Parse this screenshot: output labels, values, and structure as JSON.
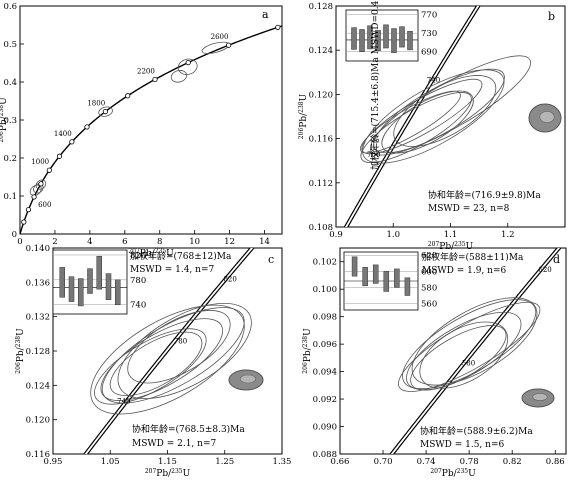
{
  "panels": [
    {
      "id": "a",
      "letter": "a",
      "xlabel": [
        "207",
        "Pb/",
        "235",
        "U"
      ],
      "ylabel": [
        "206",
        "Pb/",
        "238",
        "U"
      ],
      "chart_data": {
        "type": "scatter",
        "xlim": [
          0,
          15
        ],
        "ylim": [
          0,
          0.6
        ],
        "xticks": [
          0,
          2,
          4,
          6,
          8,
          10,
          12,
          14
        ],
        "xtick_labels": [
          "0",
          "2",
          "4",
          "6",
          "8",
          "10",
          "12",
          "14"
        ],
        "yticks": [
          0,
          0.1,
          0.2,
          0.3,
          0.4,
          0.5,
          0.6
        ],
        "ytick_labels": [
          "0",
          "0.1",
          "0.2",
          "0.3",
          "0.4",
          "0.5",
          "0.6"
        ],
        "concordia_age_range_ma": [
          0,
          2900
        ],
        "age_markers_ma": [
          200,
          400,
          600,
          800,
          1000,
          1200,
          1400,
          1600,
          1800,
          2000,
          2200,
          2400,
          2600,
          2800
        ],
        "age_labels": [
          {
            "age": 600,
            "text": "600"
          },
          {
            "age": 1000,
            "text": "1000"
          },
          {
            "age": 1400,
            "text": "1400"
          },
          {
            "age": 1800,
            "text": "1800"
          },
          {
            "age": 2200,
            "text": "2200"
          },
          {
            "age": 2600,
            "text": "2600"
          }
        ],
        "ellipses": [
          {
            "x": 0.9,
            "y": 0.115,
            "rx": 0.35,
            "ry": 0.012,
            "angle": 40
          },
          {
            "x": 1.05,
            "y": 0.12,
            "rx": 0.3,
            "ry": 0.011,
            "angle": 40
          },
          {
            "x": 1.2,
            "y": 0.13,
            "rx": 0.3,
            "ry": 0.011,
            "angle": 40
          },
          {
            "x": 4.9,
            "y": 0.322,
            "rx": 0.4,
            "ry": 0.012,
            "angle": 15
          },
          {
            "x": 9.1,
            "y": 0.415,
            "rx": 0.45,
            "ry": 0.015,
            "angle": 15
          },
          {
            "x": 9.6,
            "y": 0.44,
            "rx": 0.55,
            "ry": 0.02,
            "angle": 15
          },
          {
            "x": 11.2,
            "y": 0.49,
            "rx": 0.8,
            "ry": 0.012,
            "angle": 15
          }
        ]
      }
    },
    {
      "id": "b",
      "letter": "b",
      "xlabel": [
        "207",
        "Pb/",
        "235",
        "U"
      ],
      "ylabel": [
        "206",
        "Pb/",
        "238",
        "U"
      ],
      "annot_vertical": "加权年龄=(715.4±6.8)Ma MSWD=0.49, n=8",
      "annot_lines": [
        "协和年龄=(716.9±9.8)Ma",
        "MSWD = 23, n=8"
      ],
      "chart_data": {
        "type": "scatter",
        "xlim": [
          0.9,
          1.3
        ],
        "ylim": [
          0.108,
          0.128
        ],
        "xticks": [
          0.9,
          1.0,
          1.1,
          1.2
        ],
        "xtick_labels": [
          "0.9",
          "1.0",
          "1.1",
          "1.2"
        ],
        "yticks": [
          0.108,
          0.112,
          0.116,
          0.12,
          0.124,
          0.128
        ],
        "ytick_labels": [
          "0.108",
          "0.112",
          "0.116",
          "0.120",
          "0.124",
          "0.128"
        ],
        "concordia_age_range_ma": [
          640,
          800
        ],
        "age_labels": [
          {
            "age": 700,
            "text": "700"
          },
          {
            "age": 740,
            "text": "740"
          }
        ],
        "inset": {
          "yticks": [
            690,
            730,
            770
          ],
          "ytick_labels": [
            "690",
            "730",
            "770"
          ],
          "ylim": [
            670,
            780
          ],
          "weighted_mean": 715.4,
          "bars": [
            [
              695,
              742
            ],
            [
              690,
              738
            ],
            [
              696,
              746
            ],
            [
              692,
              736
            ],
            [
              698,
              748
            ],
            [
              688,
              740
            ],
            [
              700,
              744
            ],
            [
              694,
              734
            ]
          ]
        },
        "ellipses": [
          {
            "x": 1.03,
            "y": 0.1175,
            "rx": 0.1,
            "ry": 0.0012,
            "angle": 30
          },
          {
            "x": 1.05,
            "y": 0.118,
            "rx": 0.12,
            "ry": 0.0015,
            "angle": 30
          },
          {
            "x": 1.08,
            "y": 0.1185,
            "rx": 0.13,
            "ry": 0.002,
            "angle": 30
          },
          {
            "x": 1.07,
            "y": 0.118,
            "rx": 0.14,
            "ry": 0.0025,
            "angle": 30
          },
          {
            "x": 1.1,
            "y": 0.119,
            "rx": 0.16,
            "ry": 0.002,
            "angle": 30
          },
          {
            "x": 1.06,
            "y": 0.1175,
            "rx": 0.09,
            "ry": 0.0018,
            "angle": 30
          },
          {
            "x": 1.04,
            "y": 0.117,
            "rx": 0.11,
            "ry": 0.0016,
            "angle": 30
          },
          {
            "x": 1.09,
            "y": 0.1185,
            "rx": 0.1,
            "ry": 0.0022,
            "angle": 30
          }
        ]
      }
    },
    {
      "id": "c",
      "letter": "c",
      "xlabel": [
        "207",
        "Pb/",
        "235",
        "U"
      ],
      "ylabel": [
        "206",
        "Pb/",
        "238",
        "U"
      ],
      "annot_lines_top": [
        "加权年龄=(768±12)Ma",
        "MSWD = 1.4, n=7"
      ],
      "annot_lines": [
        "协和年龄=(768.5±8.3)Ma",
        "MSWD = 2.1, n=7"
      ],
      "chart_data": {
        "type": "scatter",
        "xlim": [
          0.95,
          1.35
        ],
        "ylim": [
          0.116,
          0.14
        ],
        "xticks": [
          0.95,
          1.05,
          1.15,
          1.25,
          1.35
        ],
        "xtick_labels": [
          "0.95",
          "1.05",
          "1.15",
          "1.25",
          "1.35"
        ],
        "yticks": [
          0.116,
          0.12,
          0.124,
          0.128,
          0.132,
          0.136,
          0.14
        ],
        "ytick_labels": [
          "0.116",
          "0.120",
          "0.124",
          "0.128",
          "0.132",
          "0.136",
          "0.140"
        ],
        "concordia_age_range_ma": [
          700,
          880
        ],
        "age_labels": [
          {
            "age": 740,
            "text": "740"
          },
          {
            "age": 780,
            "text": "780"
          },
          {
            "age": 820,
            "text": "820"
          }
        ],
        "inset": {
          "yticks": [
            740,
            780,
            820
          ],
          "ytick_labels": [
            "740",
            "780",
            "820"
          ],
          "ylim": [
            725,
            828
          ],
          "weighted_mean": 768,
          "bars": [
            [
              752,
              800
            ],
            [
              745,
              785
            ],
            [
              738,
              782
            ],
            [
              758,
              798
            ],
            [
              765,
              818
            ],
            [
              748,
              790
            ],
            [
              740,
              780
            ]
          ]
        },
        "ellipses": [
          {
            "x": 1.14,
            "y": 0.127,
            "rx": 0.12,
            "ry": 0.003,
            "angle": 30
          },
          {
            "x": 1.16,
            "y": 0.1275,
            "rx": 0.14,
            "ry": 0.0035,
            "angle": 30
          },
          {
            "x": 1.13,
            "y": 0.1265,
            "rx": 0.09,
            "ry": 0.0025,
            "angle": 30
          },
          {
            "x": 1.18,
            "y": 0.128,
            "rx": 0.13,
            "ry": 0.004,
            "angle": 30
          },
          {
            "x": 1.12,
            "y": 0.1262,
            "rx": 0.11,
            "ry": 0.0028,
            "angle": 30
          },
          {
            "x": 1.15,
            "y": 0.127,
            "rx": 0.15,
            "ry": 0.0045,
            "angle": 30
          },
          {
            "x": 1.17,
            "y": 0.1285,
            "rx": 0.1,
            "ry": 0.003,
            "angle": 30
          }
        ]
      }
    },
    {
      "id": "d",
      "letter": "d",
      "xlabel": [
        "207",
        "Pb/",
        "235",
        "U"
      ],
      "ylabel": [
        "206",
        "Pb/",
        "238",
        "U"
      ],
      "annot_lines_top": [
        "加权年龄=(588±11)Ma",
        "MSWD = 1.9, n=6"
      ],
      "annot_lines": [
        "协和年龄=(588.9±6.2)Ma",
        "MSWD = 1.5, n=6"
      ],
      "chart_data": {
        "type": "scatter",
        "xlim": [
          0.66,
          0.87
        ],
        "ylim": [
          0.088,
          0.103
        ],
        "xticks": [
          0.66,
          0.7,
          0.74,
          0.78,
          0.82,
          0.86
        ],
        "xtick_labels": [
          "0.66",
          "0.70",
          "0.74",
          "0.78",
          "0.82",
          "0.86"
        ],
        "yticks": [
          0.088,
          0.09,
          0.092,
          0.094,
          0.096,
          0.098,
          0.1,
          0.102
        ],
        "ytick_labels": [
          "0.088",
          "0.090",
          "0.092",
          "0.094",
          "0.096",
          "0.098",
          "0.100",
          "0.102"
        ],
        "concordia_age_range_ma": [
          540,
          650
        ],
        "age_labels": [
          {
            "age": 580,
            "text": "580"
          },
          {
            "age": 620,
            "text": "620"
          }
        ],
        "inset": {
          "yticks": [
            560,
            580,
            600,
            620
          ],
          "ytick_labels": [
            "560",
            "580",
            "600",
            "620"
          ],
          "ylim": [
            552,
            624
          ],
          "weighted_mean": 588,
          "bars": [
            [
              594,
              618
            ],
            [
              582,
              605
            ],
            [
              585,
              608
            ],
            [
              575,
              600
            ],
            [
              580,
              603
            ],
            [
              570,
              592
            ]
          ]
        },
        "ellipses": [
          {
            "x": 0.775,
            "y": 0.0955,
            "rx": 0.06,
            "ry": 0.0018,
            "angle": 30
          },
          {
            "x": 0.78,
            "y": 0.096,
            "rx": 0.07,
            "ry": 0.002,
            "angle": 30
          },
          {
            "x": 0.77,
            "y": 0.095,
            "rx": 0.05,
            "ry": 0.0015,
            "angle": 30
          },
          {
            "x": 0.785,
            "y": 0.0962,
            "rx": 0.065,
            "ry": 0.0022,
            "angle": 30
          },
          {
            "x": 0.775,
            "y": 0.0952,
            "rx": 0.045,
            "ry": 0.0019,
            "angle": 30
          },
          {
            "x": 0.78,
            "y": 0.0958,
            "rx": 0.075,
            "ry": 0.0016,
            "angle": 30
          }
        ]
      }
    }
  ]
}
